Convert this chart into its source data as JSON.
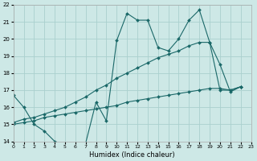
{
  "xlabel": "Humidex (Indice chaleur)",
  "bg_color": "#cde8e6",
  "grid_color": "#aad0ce",
  "line_color": "#1a6868",
  "xlim": [
    0,
    23
  ],
  "ylim": [
    14,
    22
  ],
  "xticks": [
    0,
    1,
    2,
    3,
    4,
    5,
    6,
    7,
    8,
    9,
    10,
    11,
    12,
    13,
    14,
    15,
    16,
    17,
    18,
    19,
    20,
    21,
    22,
    23
  ],
  "yticks": [
    14,
    15,
    16,
    17,
    18,
    19,
    20,
    21,
    22
  ],
  "line1_x": [
    0,
    1,
    2,
    3,
    4,
    5,
    6,
    7,
    8,
    9,
    10,
    11,
    12,
    13,
    14,
    15,
    16,
    17,
    18,
    19,
    20,
    21,
    22
  ],
  "line1_y": [
    16.7,
    16.0,
    15.0,
    14.6,
    14.0,
    13.8,
    13.8,
    13.9,
    16.3,
    15.2,
    19.9,
    21.5,
    21.1,
    21.1,
    19.5,
    19.3,
    20.0,
    21.1,
    21.7,
    19.8,
    18.5,
    16.9,
    17.2
  ],
  "line2_x": [
    0,
    1,
    2,
    3,
    4,
    5,
    6,
    7,
    8,
    9,
    10,
    11,
    12,
    13,
    14,
    15,
    16,
    17,
    18,
    19,
    20,
    21,
    22
  ],
  "line2_y": [
    15.1,
    15.3,
    15.4,
    15.6,
    15.8,
    16.0,
    16.3,
    16.6,
    17.0,
    17.3,
    17.7,
    18.0,
    18.3,
    18.6,
    18.9,
    19.1,
    19.3,
    19.6,
    19.8,
    19.8,
    17.0,
    17.0,
    17.2
  ],
  "line3_x": [
    0,
    1,
    2,
    3,
    4,
    5,
    6,
    7,
    8,
    9,
    10,
    11,
    12,
    13,
    14,
    15,
    16,
    17,
    18,
    19,
    20,
    21,
    22
  ],
  "line3_y": [
    15.0,
    15.1,
    15.2,
    15.4,
    15.5,
    15.6,
    15.7,
    15.8,
    15.9,
    16.0,
    16.1,
    16.3,
    16.4,
    16.5,
    16.6,
    16.7,
    16.8,
    16.9,
    17.0,
    17.1,
    17.1,
    17.0,
    17.2
  ]
}
